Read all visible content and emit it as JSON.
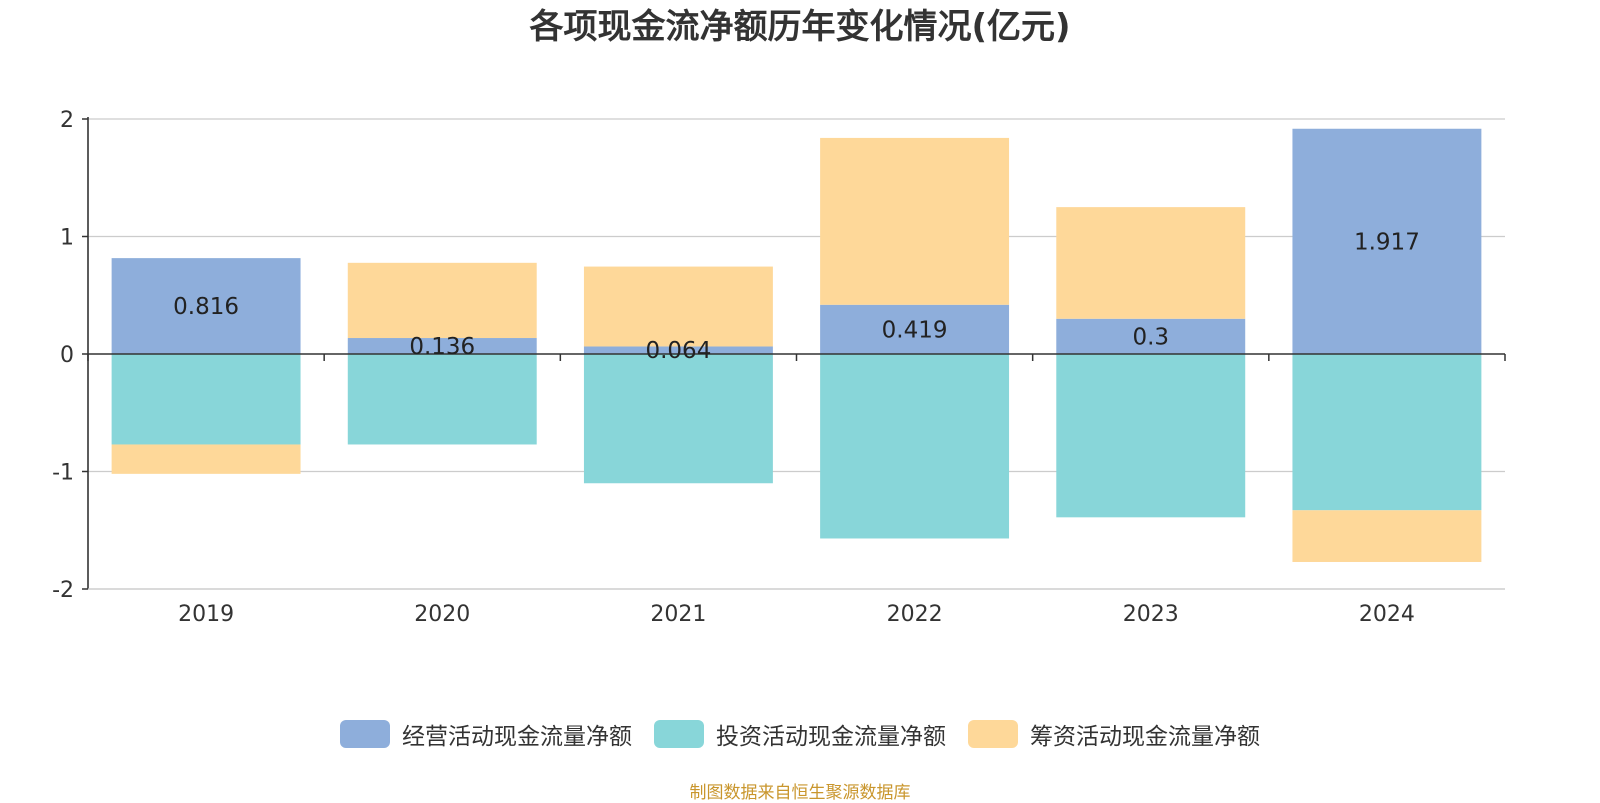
{
  "chart_data": {
    "type": "bar",
    "stacked": true,
    "title": "各项现金流净额历年变化情况(亿元)",
    "categories": [
      "2019",
      "2020",
      "2021",
      "2022",
      "2023",
      "2024"
    ],
    "series": [
      {
        "name": "经营活动现金流量净额",
        "color": "#8eaedb",
        "values": [
          0.816,
          0.136,
          0.064,
          0.419,
          0.3,
          1.917
        ],
        "labels": [
          "0.816",
          "0.136",
          "0.064",
          "0.419",
          "0.3",
          "1.917"
        ]
      },
      {
        "name": "投资活动现金流量净额",
        "color": "#88d6d9",
        "values": [
          -0.77,
          -0.77,
          -1.1,
          -1.57,
          -1.39,
          -1.33
        ]
      },
      {
        "name": "筹资活动现金流量净额",
        "color": "#fed899",
        "values": [
          -0.25,
          0.64,
          0.68,
          1.42,
          0.95,
          -0.44
        ]
      }
    ],
    "ylim": [
      -2,
      2
    ],
    "yticks": [
      2,
      1,
      0,
      -1,
      -2
    ],
    "ytick_labels": [
      "2",
      "1",
      "0",
      "-1",
      "-2"
    ],
    "grid": true,
    "legend_position": "bottom",
    "xlabel": "",
    "ylabel": ""
  },
  "source_note": "制图数据来自恒生聚源数据库"
}
